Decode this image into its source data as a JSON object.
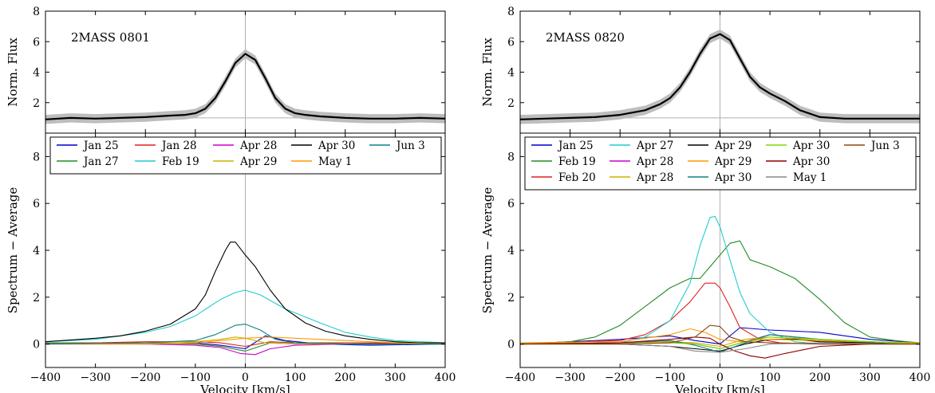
{
  "chart_data": [
    {
      "type": "line",
      "panel": "top",
      "title": "2MASS 0801",
      "ylabel": "Norm. Flux",
      "xlim": [
        -400,
        400
      ],
      "ylim": [
        0,
        8
      ],
      "xticks": [
        -400,
        -300,
        -200,
        -100,
        0,
        100,
        200,
        300,
        400
      ],
      "yticks": [
        2,
        4,
        6,
        8
      ],
      "reference_lines": {
        "x": 0,
        "y": 1
      },
      "series": [
        {
          "x": [
            -400,
            -350,
            -300,
            -250,
            -200,
            -150,
            -120,
            -100,
            -80,
            -60,
            -40,
            -20,
            0,
            20,
            40,
            60,
            80,
            100,
            120,
            150,
            200,
            250,
            300,
            350,
            400
          ],
          "y": [
            0.9,
            1.0,
            0.95,
            1.0,
            1.05,
            1.15,
            1.2,
            1.3,
            1.6,
            2.3,
            3.4,
            4.6,
            5.2,
            4.8,
            3.6,
            2.3,
            1.6,
            1.3,
            1.2,
            1.1,
            1.0,
            0.95,
            0.95,
            1.0,
            0.95
          ],
          "color": "#000000",
          "band": 0.3
        }
      ]
    },
    {
      "type": "line",
      "panel": "bottom",
      "xlabel": "Velocity [km/s]",
      "ylabel": "Spectrum − Average",
      "xlim": [
        -400,
        400
      ],
      "ylim": [
        -1,
        9
      ],
      "xticks": [
        -400,
        -300,
        -200,
        -100,
        0,
        100,
        200,
        300,
        400
      ],
      "yticks": [
        0,
        2,
        4,
        6,
        8
      ],
      "reference_lines": {
        "x": 0
      },
      "legend": {
        "placement": "top",
        "columns": 5
      },
      "series": [
        {
          "name": "Jan 25",
          "color": "#0000cc",
          "x": [
            -400,
            -200,
            -100,
            -50,
            0,
            40,
            80,
            150,
            250,
            400
          ],
          "y": [
            0.05,
            0.0,
            0.05,
            -0.05,
            -0.2,
            0.35,
            0.15,
            0.0,
            -0.05,
            0.0
          ]
        },
        {
          "name": "Jan 27",
          "color": "#228b22",
          "x": [
            -400,
            -200,
            -100,
            -50,
            0,
            50,
            100,
            200,
            400
          ],
          "y": [
            0.05,
            0.05,
            0.0,
            -0.1,
            -0.3,
            0.05,
            0.0,
            0.05,
            0.05
          ]
        },
        {
          "name": "Jan 28",
          "color": "#dd2222",
          "x": [
            -400,
            -200,
            -100,
            -50,
            0,
            50,
            100,
            200,
            400
          ],
          "y": [
            0.0,
            0.1,
            0.1,
            0.05,
            -0.1,
            0.1,
            0.05,
            0.05,
            0.0
          ]
        },
        {
          "name": "Feb 19",
          "color": "#22cccc",
          "x": [
            -400,
            -300,
            -200,
            -150,
            -100,
            -50,
            -20,
            0,
            30,
            80,
            150,
            200,
            250,
            300,
            400
          ],
          "y": [
            0.1,
            0.2,
            0.5,
            0.75,
            1.2,
            1.9,
            2.2,
            2.3,
            2.1,
            1.5,
            0.9,
            0.5,
            0.3,
            0.15,
            0.05
          ]
        },
        {
          "name": "Apr 28",
          "color": "#cc00cc",
          "x": [
            -400,
            -200,
            -100,
            -50,
            -10,
            20,
            50,
            100,
            200,
            400
          ],
          "y": [
            0.0,
            0.0,
            -0.05,
            -0.15,
            -0.4,
            -0.45,
            -0.2,
            -0.05,
            0.0,
            0.0
          ]
        },
        {
          "name": "Apr 29",
          "color": "#c8b400",
          "x": [
            -400,
            -200,
            -100,
            -50,
            -20,
            0,
            40,
            100,
            200,
            400
          ],
          "y": [
            0.0,
            0.05,
            0.1,
            0.2,
            0.3,
            0.25,
            0.05,
            0.0,
            0.0,
            0.0
          ]
        },
        {
          "name": "Apr 30",
          "color": "#000000",
          "x": [
            -400,
            -300,
            -250,
            -200,
            -150,
            -100,
            -80,
            -60,
            -40,
            -30,
            -20,
            0,
            20,
            50,
            80,
            120,
            160,
            200,
            250,
            300,
            350,
            400
          ],
          "y": [
            0.1,
            0.25,
            0.35,
            0.55,
            0.85,
            1.5,
            2.1,
            3.1,
            4.0,
            4.35,
            4.35,
            3.8,
            3.3,
            2.3,
            1.5,
            0.9,
            0.55,
            0.35,
            0.2,
            0.1,
            0.05,
            0.05
          ]
        },
        {
          "name": "May 1",
          "color": "#ff9900",
          "x": [
            -400,
            -200,
            -100,
            -50,
            0,
            50,
            100,
            200,
            300,
            400
          ],
          "y": [
            0.0,
            0.0,
            0.05,
            0.15,
            0.25,
            0.3,
            0.25,
            0.15,
            0.05,
            0.0
          ]
        },
        {
          "name": "Jun 3",
          "color": "#118080",
          "x": [
            -400,
            -200,
            -100,
            -60,
            -20,
            0,
            30,
            60,
            100,
            200,
            400
          ],
          "y": [
            0.0,
            0.05,
            0.15,
            0.4,
            0.8,
            0.85,
            0.6,
            0.2,
            0.05,
            0.0,
            0.0
          ]
        }
      ]
    },
    {
      "type": "line",
      "panel": "top",
      "title": "2MASS 0820",
      "ylabel": "Norm. Flux",
      "xlim": [
        -400,
        400
      ],
      "ylim": [
        0,
        8
      ],
      "xticks": [
        -400,
        -300,
        -200,
        -100,
        0,
        100,
        200,
        300,
        400
      ],
      "yticks": [
        2,
        4,
        6,
        8
      ],
      "reference_lines": {
        "x": 0,
        "y": 1
      },
      "series": [
        {
          "x": [
            -400,
            -350,
            -300,
            -250,
            -200,
            -150,
            -120,
            -100,
            -80,
            -60,
            -40,
            -20,
            0,
            20,
            40,
            60,
            80,
            100,
            130,
            160,
            200,
            250,
            300,
            350,
            400
          ],
          "y": [
            0.9,
            0.95,
            1.0,
            1.05,
            1.2,
            1.5,
            1.9,
            2.3,
            3.0,
            4.0,
            5.2,
            6.2,
            6.5,
            6.1,
            4.9,
            3.7,
            3.0,
            2.6,
            2.1,
            1.5,
            1.05,
            0.95,
            0.95,
            0.95,
            0.95
          ],
          "color": "#000000",
          "band": 0.3
        }
      ]
    },
    {
      "type": "line",
      "panel": "bottom",
      "xlabel": "Velocity [km/s]",
      "ylabel": "Spectrum − Average",
      "xlim": [
        -400,
        400
      ],
      "ylim": [
        -1,
        9
      ],
      "xticks": [
        -400,
        -300,
        -200,
        -100,
        0,
        100,
        200,
        300,
        400
      ],
      "yticks": [
        0,
        2,
        4,
        6,
        8
      ],
      "reference_lines": {
        "x": 0
      },
      "legend": {
        "placement": "top",
        "columns": 5
      },
      "series": [
        {
          "name": "Jan 25",
          "color": "#0000cc",
          "x": [
            -400,
            -200,
            -100,
            -50,
            0,
            40,
            100,
            150,
            200,
            300,
            400
          ],
          "y": [
            0.0,
            0.2,
            0.35,
            0.15,
            0.0,
            0.7,
            0.6,
            0.55,
            0.5,
            0.2,
            0.05
          ]
        },
        {
          "name": "Feb 19",
          "color": "#228b22",
          "x": [
            -400,
            -300,
            -250,
            -200,
            -150,
            -100,
            -60,
            -40,
            -20,
            0,
            20,
            40,
            60,
            100,
            150,
            200,
            250,
            300,
            350,
            400
          ],
          "y": [
            0.0,
            0.1,
            0.3,
            0.8,
            1.6,
            2.4,
            2.8,
            2.8,
            3.3,
            3.8,
            4.3,
            4.4,
            3.6,
            3.3,
            2.8,
            1.9,
            0.9,
            0.3,
            0.15,
            0.05
          ]
        },
        {
          "name": "Feb 20",
          "color": "#dd2222",
          "x": [
            -400,
            -200,
            -150,
            -100,
            -60,
            -30,
            -10,
            0,
            20,
            40,
            80,
            120,
            200,
            400
          ],
          "y": [
            0.0,
            0.15,
            0.4,
            1.0,
            1.8,
            2.6,
            2.6,
            2.4,
            1.6,
            0.7,
            0.2,
            0.05,
            0.0,
            0.0
          ]
        },
        {
          "name": "Apr 27",
          "color": "#22cccc",
          "x": [
            -400,
            -200,
            -150,
            -100,
            -60,
            -40,
            -20,
            -10,
            0,
            20,
            40,
            60,
            100,
            150,
            200,
            400
          ],
          "y": [
            0.0,
            0.05,
            0.3,
            1.0,
            2.6,
            4.2,
            5.4,
            5.45,
            5.0,
            3.6,
            2.2,
            1.3,
            0.5,
            0.1,
            0.0,
            0.0
          ]
        },
        {
          "name": "Apr 28",
          "color": "#cc00cc",
          "x": [
            -400,
            -200,
            -100,
            -50,
            0,
            50,
            100,
            150,
            250,
            400
          ],
          "y": [
            0.0,
            0.05,
            0.1,
            0.0,
            -0.2,
            0.1,
            0.4,
            0.3,
            0.1,
            0.0
          ]
        },
        {
          "name": "Apr 28",
          "color": "#c8b400",
          "x": [
            -400,
            -200,
            -100,
            -50,
            0,
            50,
            100,
            200,
            400
          ],
          "y": [
            0.0,
            0.05,
            0.1,
            0.05,
            -0.1,
            0.2,
            0.3,
            0.15,
            0.0
          ]
        },
        {
          "name": "Apr 29",
          "color": "#000000",
          "x": [
            -400,
            -200,
            -100,
            -50,
            0,
            50,
            100,
            150,
            200,
            400
          ],
          "y": [
            0.0,
            0.0,
            -0.1,
            -0.2,
            -0.3,
            0.0,
            0.2,
            0.2,
            0.1,
            0.0
          ]
        },
        {
          "name": "Apr 29",
          "color": "#ff9900",
          "x": [
            -400,
            -200,
            -100,
            -60,
            -30,
            0,
            40,
            100,
            200,
            400
          ],
          "y": [
            0.05,
            0.1,
            0.4,
            0.65,
            0.5,
            0.2,
            0.1,
            0.2,
            0.15,
            0.05
          ]
        },
        {
          "name": "Apr 30",
          "color": "#118080",
          "x": [
            -400,
            -200,
            -100,
            -50,
            0,
            50,
            100,
            200,
            400
          ],
          "y": [
            0.0,
            0.05,
            0.15,
            -0.05,
            -0.35,
            0.05,
            0.4,
            0.2,
            0.0
          ]
        },
        {
          "name": "Apr 30",
          "color": "#77dd00",
          "x": [
            -400,
            -200,
            -100,
            -50,
            0,
            50,
            100,
            200,
            400
          ],
          "y": [
            0.0,
            0.0,
            0.05,
            0.0,
            -0.2,
            0.1,
            0.3,
            0.2,
            0.0
          ]
        },
        {
          "name": "Apr 30",
          "color": "#8b0000",
          "x": [
            -400,
            -200,
            -100,
            -50,
            -20,
            0,
            30,
            60,
            90,
            130,
            200,
            300,
            400
          ],
          "y": [
            0.0,
            0.05,
            0.2,
            0.3,
            0.25,
            0.0,
            -0.3,
            -0.5,
            -0.6,
            -0.4,
            -0.1,
            0.0,
            0.0
          ]
        },
        {
          "name": "May 1",
          "color": "#888888",
          "x": [
            -400,
            -200,
            -100,
            -50,
            0,
            50,
            100,
            200,
            400
          ],
          "y": [
            0.0,
            0.0,
            -0.1,
            -0.3,
            -0.35,
            -0.2,
            0.0,
            0.05,
            0.0
          ]
        },
        {
          "name": "Jun 3",
          "color": "#8b4513",
          "x": [
            -400,
            -200,
            -100,
            -50,
            -20,
            0,
            20,
            50,
            100,
            200,
            400
          ],
          "y": [
            0.0,
            0.0,
            0.05,
            0.3,
            0.8,
            0.75,
            0.3,
            0.1,
            0.05,
            0.0,
            0.0
          ]
        }
      ]
    }
  ]
}
